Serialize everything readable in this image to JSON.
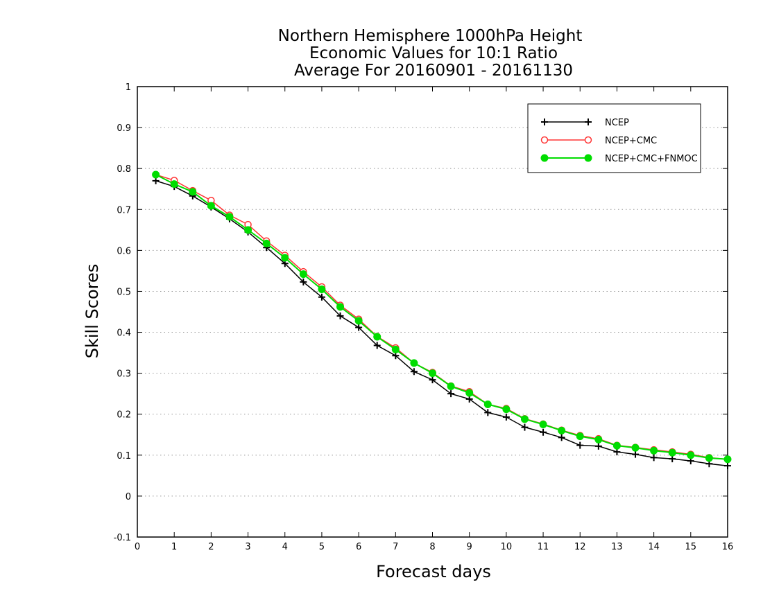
{
  "chart_data": {
    "type": "line",
    "title": [
      "Northern Hemisphere 1000hPa Height",
      "Economic Values for 10:1 Ratio",
      "Average For 20160901 - 20161130"
    ],
    "xlabel": "Forecast days",
    "ylabel": "Skill Scores",
    "xlim": [
      0,
      16
    ],
    "ylim": [
      -0.1,
      1
    ],
    "xticks": [
      "0",
      "1",
      "2",
      "3",
      "4",
      "5",
      "6",
      "7",
      "8",
      "9",
      "10",
      "11",
      "12",
      "13",
      "14",
      "15",
      "16"
    ],
    "yticks": [
      "-0.1",
      "0",
      "0.1",
      "0.2",
      "0.3",
      "0.4",
      "0.5",
      "0.6",
      "0.7",
      "0.8",
      "0.9",
      "1"
    ],
    "grid": "horizontal dotted",
    "legend_position": "top-right",
    "x": [
      0.5,
      1,
      1.5,
      2,
      2.5,
      3,
      3.5,
      4,
      4.5,
      5,
      5.5,
      6,
      6.5,
      7,
      7.5,
      8,
      8.5,
      9,
      9.5,
      10,
      10.5,
      11,
      11.5,
      12,
      12.5,
      13,
      13.5,
      14,
      14.5,
      15,
      15.5,
      16
    ],
    "series": [
      {
        "name": "NCEP",
        "color": "#000000",
        "marker": "plus",
        "values": [
          0.77,
          0.756,
          0.733,
          0.706,
          0.677,
          0.645,
          0.607,
          0.568,
          0.523,
          0.486,
          0.44,
          0.412,
          0.368,
          0.343,
          0.304,
          0.284,
          0.25,
          0.237,
          0.204,
          0.193,
          0.168,
          0.156,
          0.143,
          0.124,
          0.122,
          0.108,
          0.102,
          0.094,
          0.091,
          0.086,
          0.079,
          0.074
        ]
      },
      {
        "name": "NCEP+CMC",
        "color": "#ff3333",
        "marker": "open-circle",
        "values": [
          0.785,
          0.771,
          0.746,
          0.722,
          0.686,
          0.663,
          0.623,
          0.588,
          0.548,
          0.511,
          0.466,
          0.432,
          0.39,
          0.362,
          0.325,
          0.302,
          0.269,
          0.255,
          0.224,
          0.214,
          0.189,
          0.176,
          0.161,
          0.148,
          0.14,
          0.124,
          0.119,
          0.113,
          0.108,
          0.102,
          0.094,
          0.09
        ]
      },
      {
        "name": "NCEP+CMC+FNMOC",
        "color": "#00dd00",
        "marker": "filled-circle",
        "values": [
          0.785,
          0.762,
          0.743,
          0.709,
          0.682,
          0.65,
          0.617,
          0.582,
          0.542,
          0.505,
          0.462,
          0.428,
          0.389,
          0.358,
          0.325,
          0.3,
          0.268,
          0.252,
          0.224,
          0.212,
          0.188,
          0.175,
          0.16,
          0.146,
          0.138,
          0.123,
          0.118,
          0.111,
          0.106,
          0.1,
          0.093,
          0.09
        ]
      }
    ]
  }
}
